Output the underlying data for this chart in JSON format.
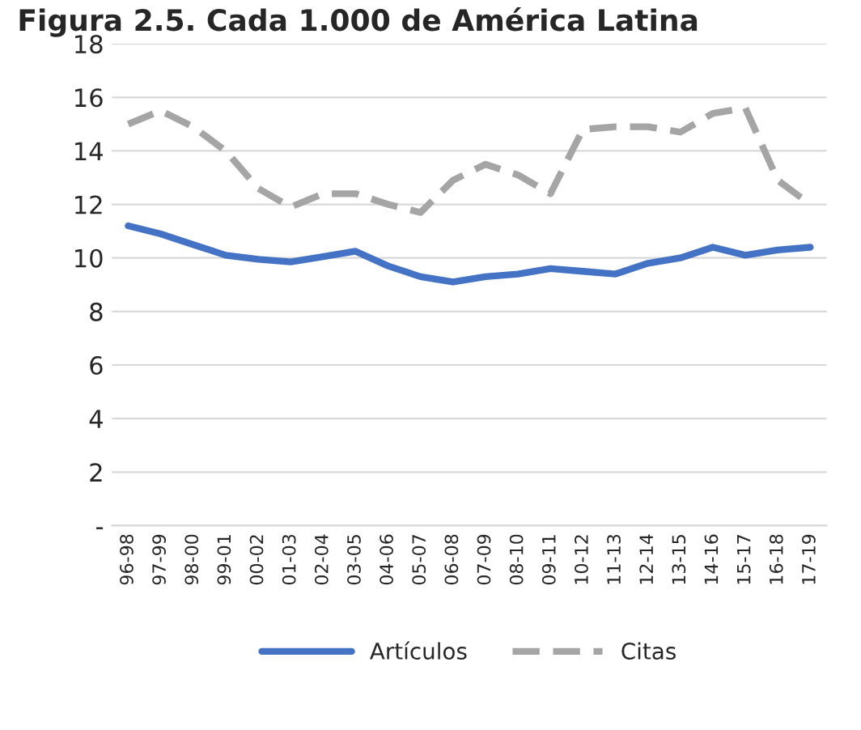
{
  "chart_data": {
    "type": "line",
    "title": "Figura 2.5. Cada 1.000 de América Latina",
    "categories": [
      "96-98",
      "97-99",
      "98-00",
      "99-01",
      "00-02",
      "01-03",
      "02-04",
      "03-05",
      "04-06",
      "05-07",
      "06-08",
      "07-09",
      "08-10",
      "09-11",
      "10-12",
      "11-13",
      "12-14",
      "13-15",
      "14-16",
      "15-17",
      "16-18",
      "17-19"
    ],
    "series": [
      {
        "name": "Artículos",
        "color": "#4472c4",
        "line_style": "solid",
        "values": [
          11.2,
          10.9,
          10.5,
          10.1,
          9.95,
          9.85,
          10.05,
          10.25,
          9.7,
          9.3,
          9.1,
          9.3,
          9.4,
          9.6,
          9.5,
          9.4,
          9.8,
          10.0,
          10.4,
          10.1,
          10.3,
          10.4
        ]
      },
      {
        "name": "Citas",
        "color": "#a5a5a5",
        "line_style": "dashed",
        "values": [
          15.0,
          15.5,
          14.9,
          14.0,
          12.6,
          11.9,
          12.4,
          12.4,
          12.0,
          11.7,
          12.9,
          13.5,
          13.1,
          12.4,
          14.8,
          14.9,
          14.9,
          14.7,
          15.4,
          15.6,
          12.9,
          12.0
        ]
      }
    ],
    "ylim": [
      0,
      18
    ],
    "yticks": [
      {
        "value": 0,
        "label": "-"
      },
      2,
      4,
      6,
      8,
      10,
      12,
      14,
      16,
      18
    ],
    "grid": "y",
    "legend": "bottom"
  }
}
